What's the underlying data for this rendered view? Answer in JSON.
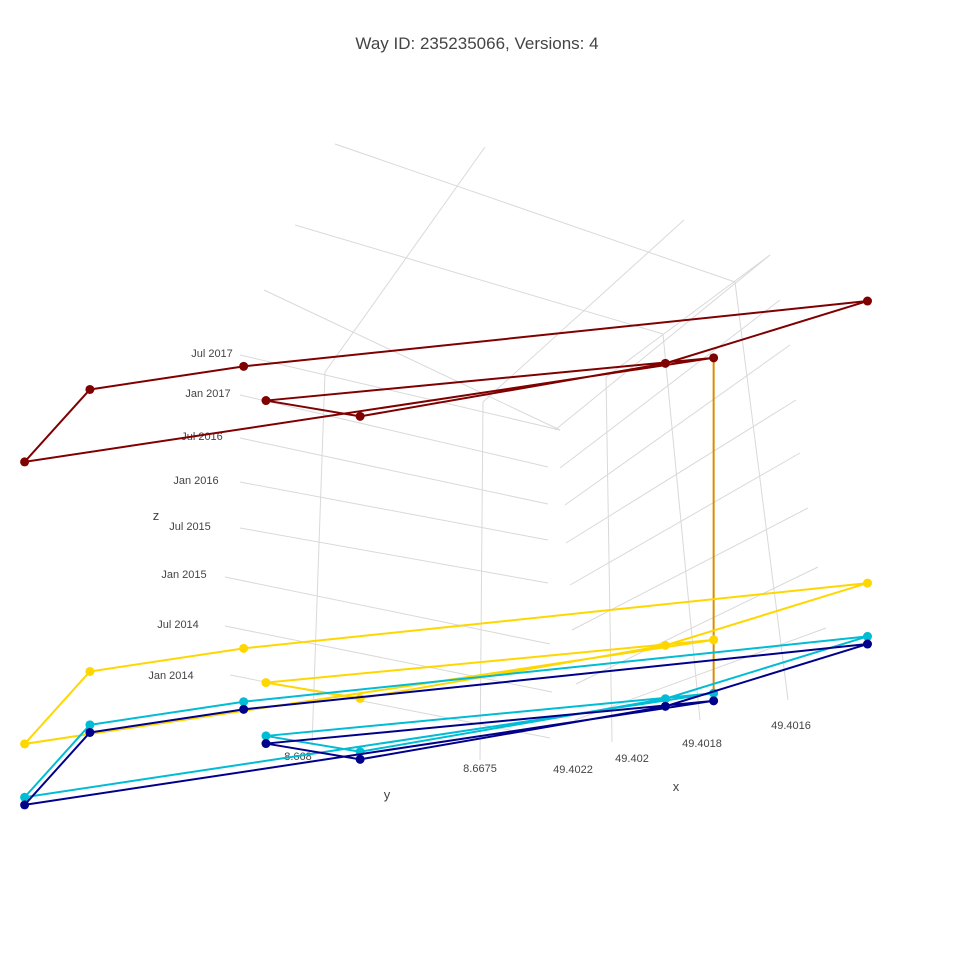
{
  "chart_data": {
    "type": "scatter3d",
    "title": "Way ID: 235235066, Versions: 4",
    "xlabel": "x",
    "ylabel": "y",
    "zlabel": "z",
    "x_ticks": [
      "49.4016",
      "49.4018",
      "49.402",
      "49.4022"
    ],
    "y_ticks": [
      "8.668",
      "8.6675"
    ],
    "z_ticks": [
      "Jan 2014",
      "Jul 2014",
      "Jan 2015",
      "Jul 2015",
      "Jan 2016",
      "Jul 2016",
      "Jan 2017",
      "Jul 2017"
    ],
    "grid": true,
    "legend": "none",
    "series": [
      {
        "date": "2013-10",
        "color": "#00008b",
        "nodes": [
          {
            "x": 49.40214,
            "y": 8.66817
          },
          {
            "x": 49.40203,
            "y": 8.66778
          },
          {
            "x": 49.40221,
            "y": 8.66738
          },
          {
            "x": 49.40213,
            "y": 8.66781
          },
          {
            "x": 49.40211,
            "y": 8.66755
          },
          {
            "x": 49.4022,
            "y": 8.66742
          },
          {
            "x": 49.4023,
            "y": 8.66752
          },
          {
            "x": 49.40218,
            "y": 8.66808
          },
          {
            "x": 49.40214,
            "y": 8.66817
          }
        ]
      },
      {
        "date": "2013-11",
        "color": "#00bcd4",
        "nodes": [
          {
            "x": 49.40214,
            "y": 8.66817
          },
          {
            "x": 49.40203,
            "y": 8.66778
          },
          {
            "x": 49.40221,
            "y": 8.66738
          },
          {
            "x": 49.40213,
            "y": 8.66781
          },
          {
            "x": 49.40211,
            "y": 8.66755
          },
          {
            "x": 49.4022,
            "y": 8.66742
          },
          {
            "x": 49.4023,
            "y": 8.66752
          },
          {
            "x": 49.40218,
            "y": 8.66808
          },
          {
            "x": 49.40214,
            "y": 8.66817
          }
        ]
      },
      {
        "date": "2014-06",
        "color": "#ffd700",
        "nodes": [
          {
            "x": 49.40214,
            "y": 8.66817
          },
          {
            "x": 49.40203,
            "y": 8.66778
          },
          {
            "x": 49.40221,
            "y": 8.66738
          },
          {
            "x": 49.40213,
            "y": 8.66781
          },
          {
            "x": 49.40211,
            "y": 8.66755
          },
          {
            "x": 49.4022,
            "y": 8.66742
          },
          {
            "x": 49.4023,
            "y": 8.66752
          },
          {
            "x": 49.40218,
            "y": 8.66808
          },
          {
            "x": 49.40214,
            "y": 8.66817
          }
        ]
      },
      {
        "date": "2017-07",
        "color": "#7f0000",
        "nodes": [
          {
            "x": 49.40214,
            "y": 8.66817
          },
          {
            "x": 49.40203,
            "y": 8.66778
          },
          {
            "x": 49.40221,
            "y": 8.66738
          },
          {
            "x": 49.40213,
            "y": 8.66781
          },
          {
            "x": 49.40211,
            "y": 8.66755
          },
          {
            "x": 49.4022,
            "y": 8.66742
          },
          {
            "x": 49.4023,
            "y": 8.66752
          },
          {
            "x": 49.40218,
            "y": 8.66808
          },
          {
            "x": 49.40214,
            "y": 8.66817
          }
        ]
      }
    ]
  }
}
